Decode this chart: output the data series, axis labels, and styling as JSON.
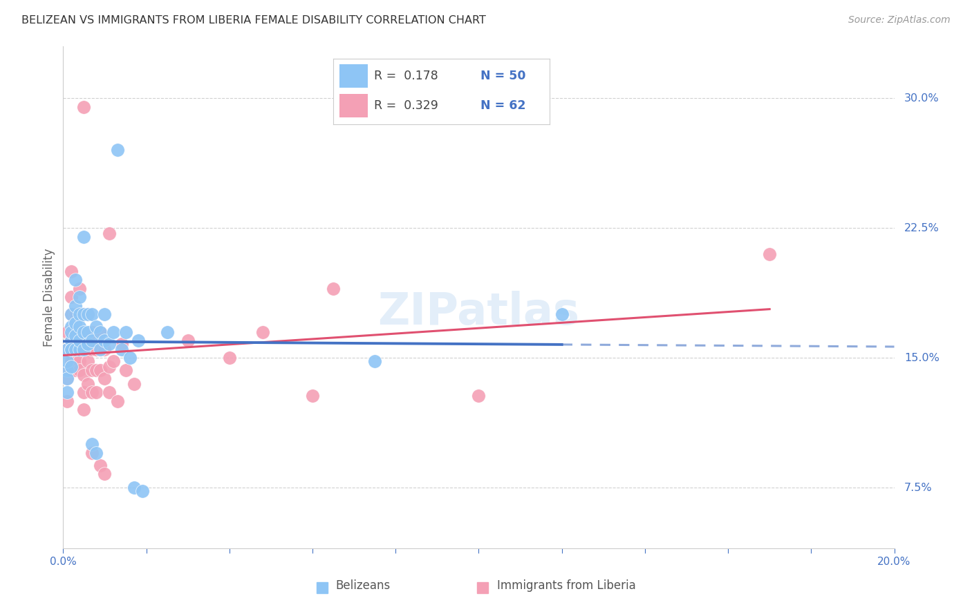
{
  "title": "BELIZEAN VS IMMIGRANTS FROM LIBERIA FEMALE DISABILITY CORRELATION CHART",
  "source": "Source: ZipAtlas.com",
  "ylabel": "Female Disability",
  "ytick_labels": [
    "30.0%",
    "22.5%",
    "15.0%",
    "7.5%"
  ],
  "ytick_values": [
    0.3,
    0.225,
    0.15,
    0.075
  ],
  "xlim": [
    0.0,
    0.2
  ],
  "ylim": [
    0.04,
    0.33
  ],
  "legend_blue_r": "0.178",
  "legend_blue_n": "50",
  "legend_pink_r": "0.329",
  "legend_pink_n": "62",
  "blue_color": "#8ec5f5",
  "pink_color": "#f4a0b5",
  "line_blue": "#4472c4",
  "line_pink": "#e05070",
  "watermark": "ZIPatlas",
  "blue_scatter": [
    [
      0.001,
      0.13
    ],
    [
      0.001,
      0.155
    ],
    [
      0.001,
      0.143
    ],
    [
      0.001,
      0.148
    ],
    [
      0.001,
      0.138
    ],
    [
      0.002,
      0.175
    ],
    [
      0.002,
      0.168
    ],
    [
      0.002,
      0.16
    ],
    [
      0.002,
      0.155
    ],
    [
      0.002,
      0.145
    ],
    [
      0.002,
      0.165
    ],
    [
      0.002,
      0.155
    ],
    [
      0.003,
      0.18
    ],
    [
      0.003,
      0.17
    ],
    [
      0.003,
      0.163
    ],
    [
      0.003,
      0.195
    ],
    [
      0.003,
      0.155
    ],
    [
      0.004,
      0.185
    ],
    [
      0.004,
      0.175
    ],
    [
      0.004,
      0.155
    ],
    [
      0.004,
      0.16
    ],
    [
      0.004,
      0.168
    ],
    [
      0.005,
      0.175
    ],
    [
      0.005,
      0.165
    ],
    [
      0.005,
      0.155
    ],
    [
      0.005,
      0.22
    ],
    [
      0.006,
      0.175
    ],
    [
      0.006,
      0.165
    ],
    [
      0.006,
      0.158
    ],
    [
      0.007,
      0.1
    ],
    [
      0.007,
      0.16
    ],
    [
      0.007,
      0.175
    ],
    [
      0.008,
      0.095
    ],
    [
      0.008,
      0.168
    ],
    [
      0.009,
      0.165
    ],
    [
      0.009,
      0.155
    ],
    [
      0.01,
      0.16
    ],
    [
      0.01,
      0.175
    ],
    [
      0.011,
      0.158
    ],
    [
      0.012,
      0.165
    ],
    [
      0.013,
      0.27
    ],
    [
      0.014,
      0.155
    ],
    [
      0.015,
      0.165
    ],
    [
      0.016,
      0.15
    ],
    [
      0.017,
      0.075
    ],
    [
      0.018,
      0.16
    ],
    [
      0.019,
      0.073
    ],
    [
      0.025,
      0.165
    ],
    [
      0.075,
      0.148
    ],
    [
      0.12,
      0.175
    ]
  ],
  "pink_scatter": [
    [
      0.001,
      0.125
    ],
    [
      0.001,
      0.155
    ],
    [
      0.001,
      0.143
    ],
    [
      0.001,
      0.138
    ],
    [
      0.001,
      0.165
    ],
    [
      0.002,
      0.2
    ],
    [
      0.002,
      0.185
    ],
    [
      0.002,
      0.175
    ],
    [
      0.002,
      0.16
    ],
    [
      0.002,
      0.148
    ],
    [
      0.002,
      0.143
    ],
    [
      0.003,
      0.175
    ],
    [
      0.003,
      0.165
    ],
    [
      0.003,
      0.155
    ],
    [
      0.003,
      0.148
    ],
    [
      0.003,
      0.143
    ],
    [
      0.004,
      0.19
    ],
    [
      0.004,
      0.175
    ],
    [
      0.004,
      0.165
    ],
    [
      0.004,
      0.155
    ],
    [
      0.004,
      0.148
    ],
    [
      0.004,
      0.143
    ],
    [
      0.005,
      0.175
    ],
    [
      0.005,
      0.165
    ],
    [
      0.005,
      0.155
    ],
    [
      0.005,
      0.14
    ],
    [
      0.005,
      0.13
    ],
    [
      0.005,
      0.12
    ],
    [
      0.005,
      0.295
    ],
    [
      0.006,
      0.175
    ],
    [
      0.006,
      0.16
    ],
    [
      0.006,
      0.148
    ],
    [
      0.006,
      0.135
    ],
    [
      0.007,
      0.165
    ],
    [
      0.007,
      0.155
    ],
    [
      0.007,
      0.143
    ],
    [
      0.007,
      0.13
    ],
    [
      0.007,
      0.095
    ],
    [
      0.008,
      0.155
    ],
    [
      0.008,
      0.143
    ],
    [
      0.008,
      0.13
    ],
    [
      0.009,
      0.165
    ],
    [
      0.009,
      0.143
    ],
    [
      0.009,
      0.088
    ],
    [
      0.01,
      0.155
    ],
    [
      0.01,
      0.138
    ],
    [
      0.01,
      0.083
    ],
    [
      0.011,
      0.145
    ],
    [
      0.011,
      0.13
    ],
    [
      0.011,
      0.222
    ],
    [
      0.012,
      0.148
    ],
    [
      0.013,
      0.125
    ],
    [
      0.014,
      0.158
    ],
    [
      0.015,
      0.143
    ],
    [
      0.017,
      0.135
    ],
    [
      0.03,
      0.16
    ],
    [
      0.04,
      0.15
    ],
    [
      0.048,
      0.165
    ],
    [
      0.06,
      0.128
    ],
    [
      0.065,
      0.19
    ],
    [
      0.1,
      0.128
    ],
    [
      0.17,
      0.21
    ]
  ],
  "background_color": "#ffffff",
  "grid_color": "#d0d0d0",
  "title_color": "#333333",
  "axis_color": "#4472c4"
}
